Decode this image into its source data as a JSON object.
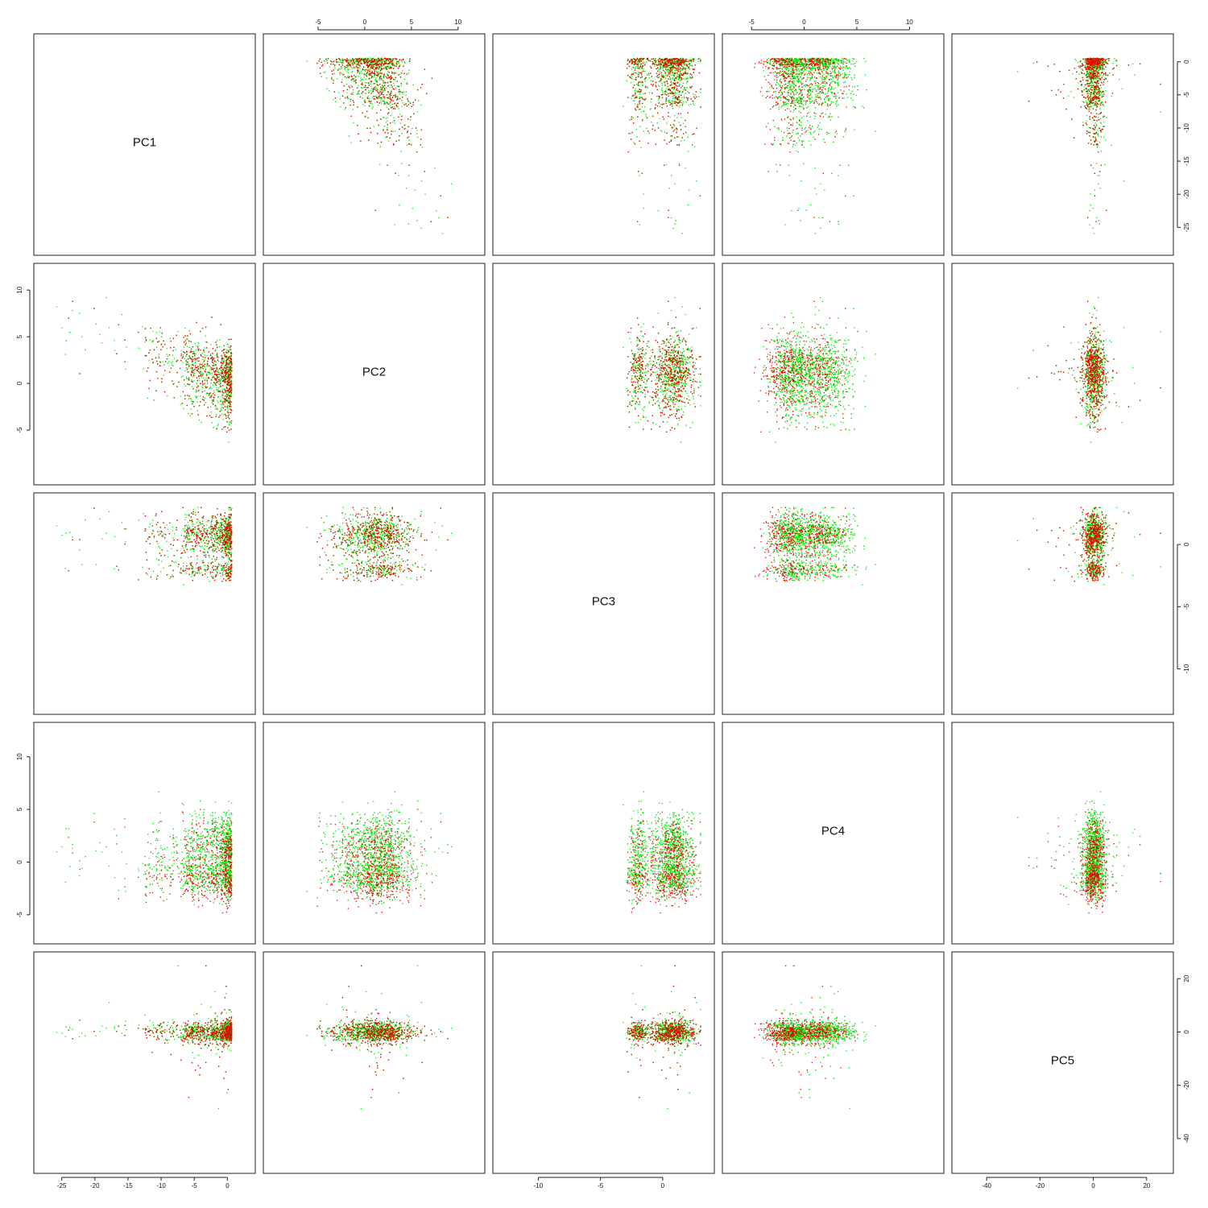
{
  "chart_data": {
    "type": "scatter",
    "variables": [
      "PC1",
      "PC2",
      "PC3",
      "PC4",
      "PC5"
    ],
    "ranges": {
      "PC1": [
        -28,
        3
      ],
      "PC2": [
        -10,
        12
      ],
      "PC3": [
        -13,
        3.5
      ],
      "PC4": [
        -7,
        12.5
      ],
      "PC5": [
        -50,
        27
      ]
    },
    "ticks": {
      "PC1": [
        -25,
        -20,
        -15,
        -10,
        -5,
        0
      ],
      "PC2": [
        -5,
        0,
        5,
        10
      ],
      "PC3": [
        -10,
        -5,
        0
      ],
      "PC4": [
        -5,
        0,
        5,
        10
      ],
      "PC5": [
        -40,
        -20,
        0,
        20
      ]
    },
    "axis_sides": {
      "top": [
        "PC2",
        "PC4"
      ],
      "right": [
        "PC1",
        "PC3",
        "PC5"
      ],
      "bottom": [
        "PC1",
        "PC3",
        "PC5"
      ],
      "left": [
        "PC2",
        "PC4"
      ]
    },
    "series": [
      {
        "color": "#00ee00",
        "approx_points": 1800
      },
      {
        "color": "#ee0000",
        "approx_points": 600
      }
    ],
    "grid": false
  }
}
